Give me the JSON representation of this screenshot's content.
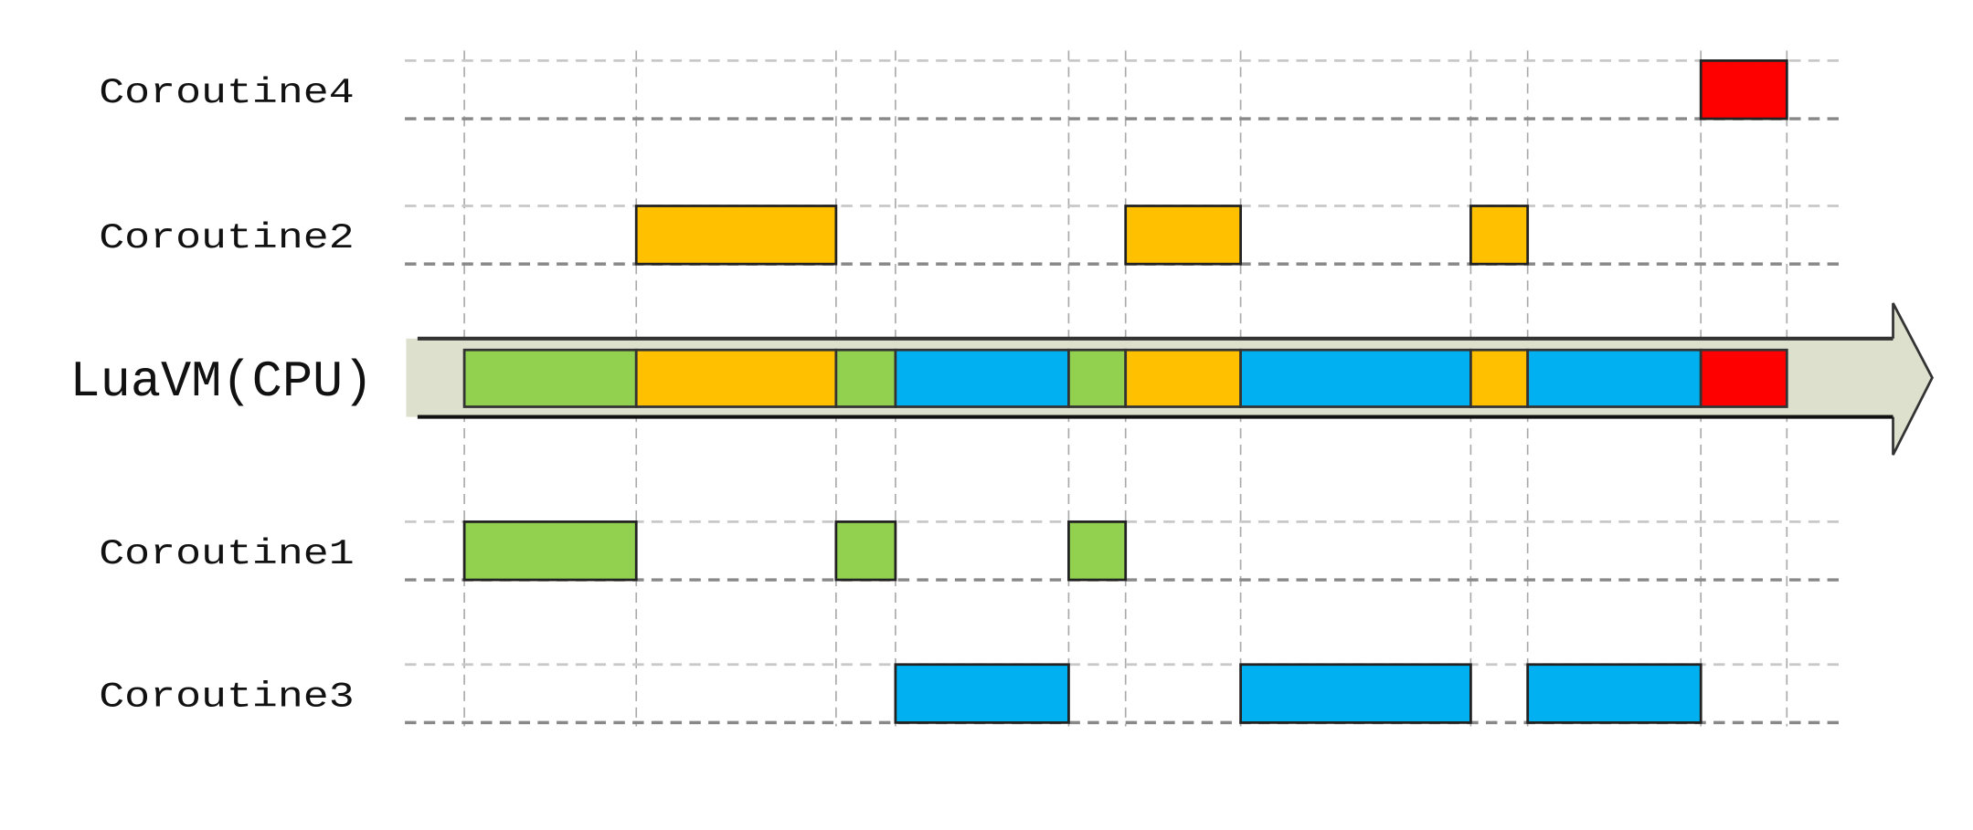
{
  "rows": [
    {
      "id": "c4",
      "label": "Coroutine4",
      "color": "#FF0000"
    },
    {
      "id": "c2",
      "label": "Coroutine2",
      "color": "#FFC000"
    },
    {
      "id": "c1",
      "label": "Coroutine1",
      "color": "#92D050"
    },
    {
      "id": "c3",
      "label": "Coroutine3",
      "color": "#00B0F0"
    }
  ],
  "cpu": {
    "label": "LuaVM(CPU)",
    "band_color": "#DDE0CC",
    "slices": [
      "c1",
      "c2",
      "c1",
      "c3",
      "c1",
      "c2",
      "c3",
      "c2",
      "c3",
      "c4"
    ]
  }
}
